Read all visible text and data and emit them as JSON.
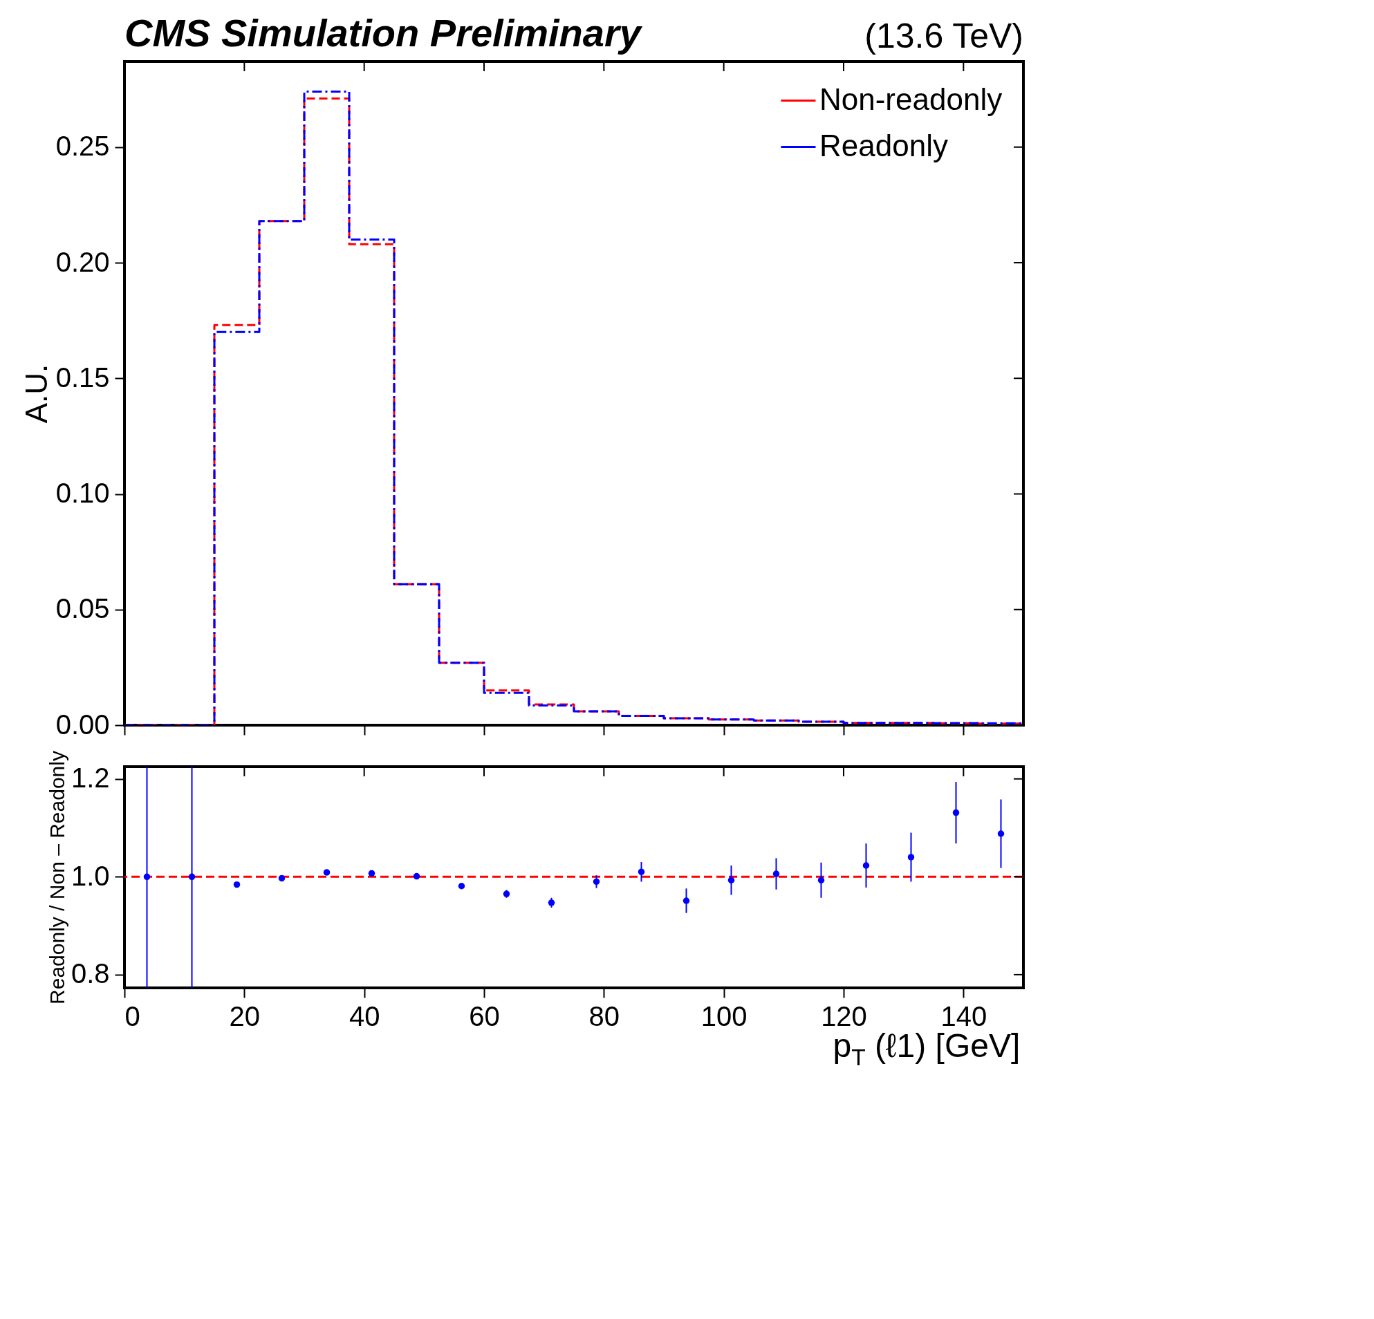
{
  "chart_data": [
    {
      "type": "histogram",
      "title": "CMS Simulation Preliminary",
      "subtitle": "(13.6 TeV)",
      "ylabel": "A.U.",
      "bins": [
        0,
        7.5,
        15,
        22.5,
        30,
        37.5,
        45,
        52.5,
        60,
        67.5,
        75,
        82.5,
        90,
        97.5,
        105,
        112.5,
        120,
        127.5,
        135,
        142.5,
        150
      ],
      "series": [
        {
          "name": "Non-readonly",
          "color": "#ff0000",
          "line_style": "dashed",
          "values": [
            0,
            0,
            0.173,
            0.218,
            0.271,
            0.208,
            0.061,
            0.027,
            0.015,
            0.009,
            0.006,
            0.004,
            0.003,
            0.0025,
            0.002,
            0.0015,
            0.001,
            0.001,
            0.0008,
            0.0007
          ]
        },
        {
          "name": "Readonly",
          "color": "#0000ff",
          "line_style": "dashdot",
          "values": [
            0,
            0,
            0.17,
            0.218,
            0.274,
            0.21,
            0.061,
            0.027,
            0.014,
            0.0085,
            0.006,
            0.004,
            0.003,
            0.0025,
            0.002,
            0.0015,
            0.001,
            0.001,
            0.0009,
            0.0008
          ]
        }
      ],
      "xlim": [
        0,
        150
      ],
      "xticks": [
        0,
        20,
        40,
        60,
        80,
        100,
        120,
        140
      ],
      "ylim": [
        0,
        0.287
      ],
      "yticks": [
        {
          "value": 0,
          "label": "0.00"
        },
        {
          "value": 0.05,
          "label": "0.05"
        },
        {
          "value": 0.1,
          "label": "0.10"
        },
        {
          "value": 0.15,
          "label": "0.15"
        },
        {
          "value": 0.2,
          "label": "0.20"
        },
        {
          "value": 0.25,
          "label": "0.25"
        }
      ],
      "tick_labels": "y",
      "legend": "top right",
      "grid": false
    },
    {
      "type": "scatter",
      "xlabel": "p$_{T}$ (ℓ1) [GeV]",
      "ylabel": "Readonly / Non – Readonly",
      "marker": "circle",
      "color": "#0000ff",
      "x": [
        3.75,
        11.25,
        18.75,
        26.25,
        33.75,
        41.25,
        48.75,
        56.25,
        63.75,
        71.25,
        78.75,
        86.25,
        93.75,
        101.25,
        108.75,
        116.25,
        123.75,
        131.25,
        138.75,
        146.25
      ],
      "values": [
        1.0,
        1.0,
        0.984,
        0.997,
        1.009,
        1.007,
        1.001,
        0.981,
        0.965,
        0.947,
        0.99,
        1.01,
        0.951,
        0.993,
        1.006,
        0.993,
        1.023,
        1.04,
        1.131,
        1.088
      ],
      "errors": [
        [
          0.773,
          1.225
        ],
        [
          0.773,
          1.225
        ],
        0.003,
        0.003,
        0.003,
        0.004,
        0.004,
        0.005,
        0.008,
        0.01,
        0.013,
        0.02,
        0.025,
        0.03,
        0.032,
        0.036,
        0.045,
        0.05,
        0.063,
        0.07
      ],
      "ref_lines": [
        {
          "axis": "y",
          "value": 1.0,
          "color": "#ff0000",
          "line_style": "dashed"
        }
      ],
      "xlim": [
        0,
        150
      ],
      "xticks": [
        0,
        20,
        40,
        60,
        80,
        100,
        120,
        140
      ],
      "ylim": [
        0.773,
        1.225
      ],
      "yticks": [
        {
          "value": 0.8,
          "label": "0.8"
        },
        {
          "value": 1.0,
          "label": "1.0"
        },
        {
          "value": 1.2,
          "label": "1.2"
        }
      ],
      "grid": false
    }
  ]
}
